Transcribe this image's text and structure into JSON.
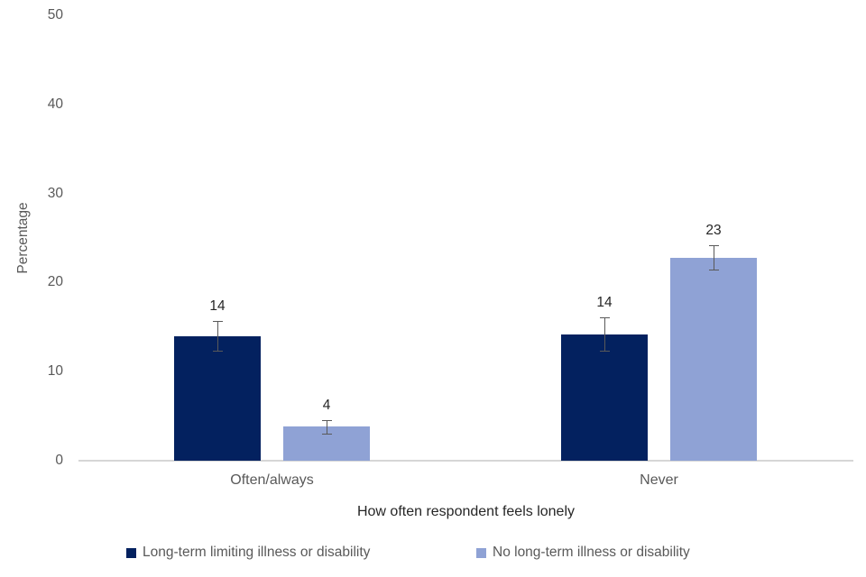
{
  "chart_data": {
    "type": "bar",
    "title": "",
    "xlabel": "How often respondent feels lonely",
    "ylabel": "Percentage",
    "ylim": [
      0,
      50
    ],
    "yticks": [
      0,
      10,
      20,
      30,
      40,
      50
    ],
    "categories": [
      "Often/always",
      "Never"
    ],
    "series": [
      {
        "name": "Long-term limiting illness or disability",
        "color": "#03215f",
        "values": [
          14,
          14.2
        ],
        "labels": [
          "14",
          "14"
        ],
        "errors": [
          1.7,
          1.9
        ]
      },
      {
        "name": "No long-term illness or disability",
        "color": "#8fa2d5",
        "values": [
          3.8,
          22.8
        ],
        "labels": [
          "4",
          "23"
        ],
        "errors": [
          0.75,
          1.35
        ]
      }
    ],
    "grid": false,
    "legend_position": "bottom",
    "error_bar_color": "#595959",
    "axis_line_color": "#d6d6d6",
    "tick_label_color": "#595959",
    "value_label_color": "#262626"
  }
}
